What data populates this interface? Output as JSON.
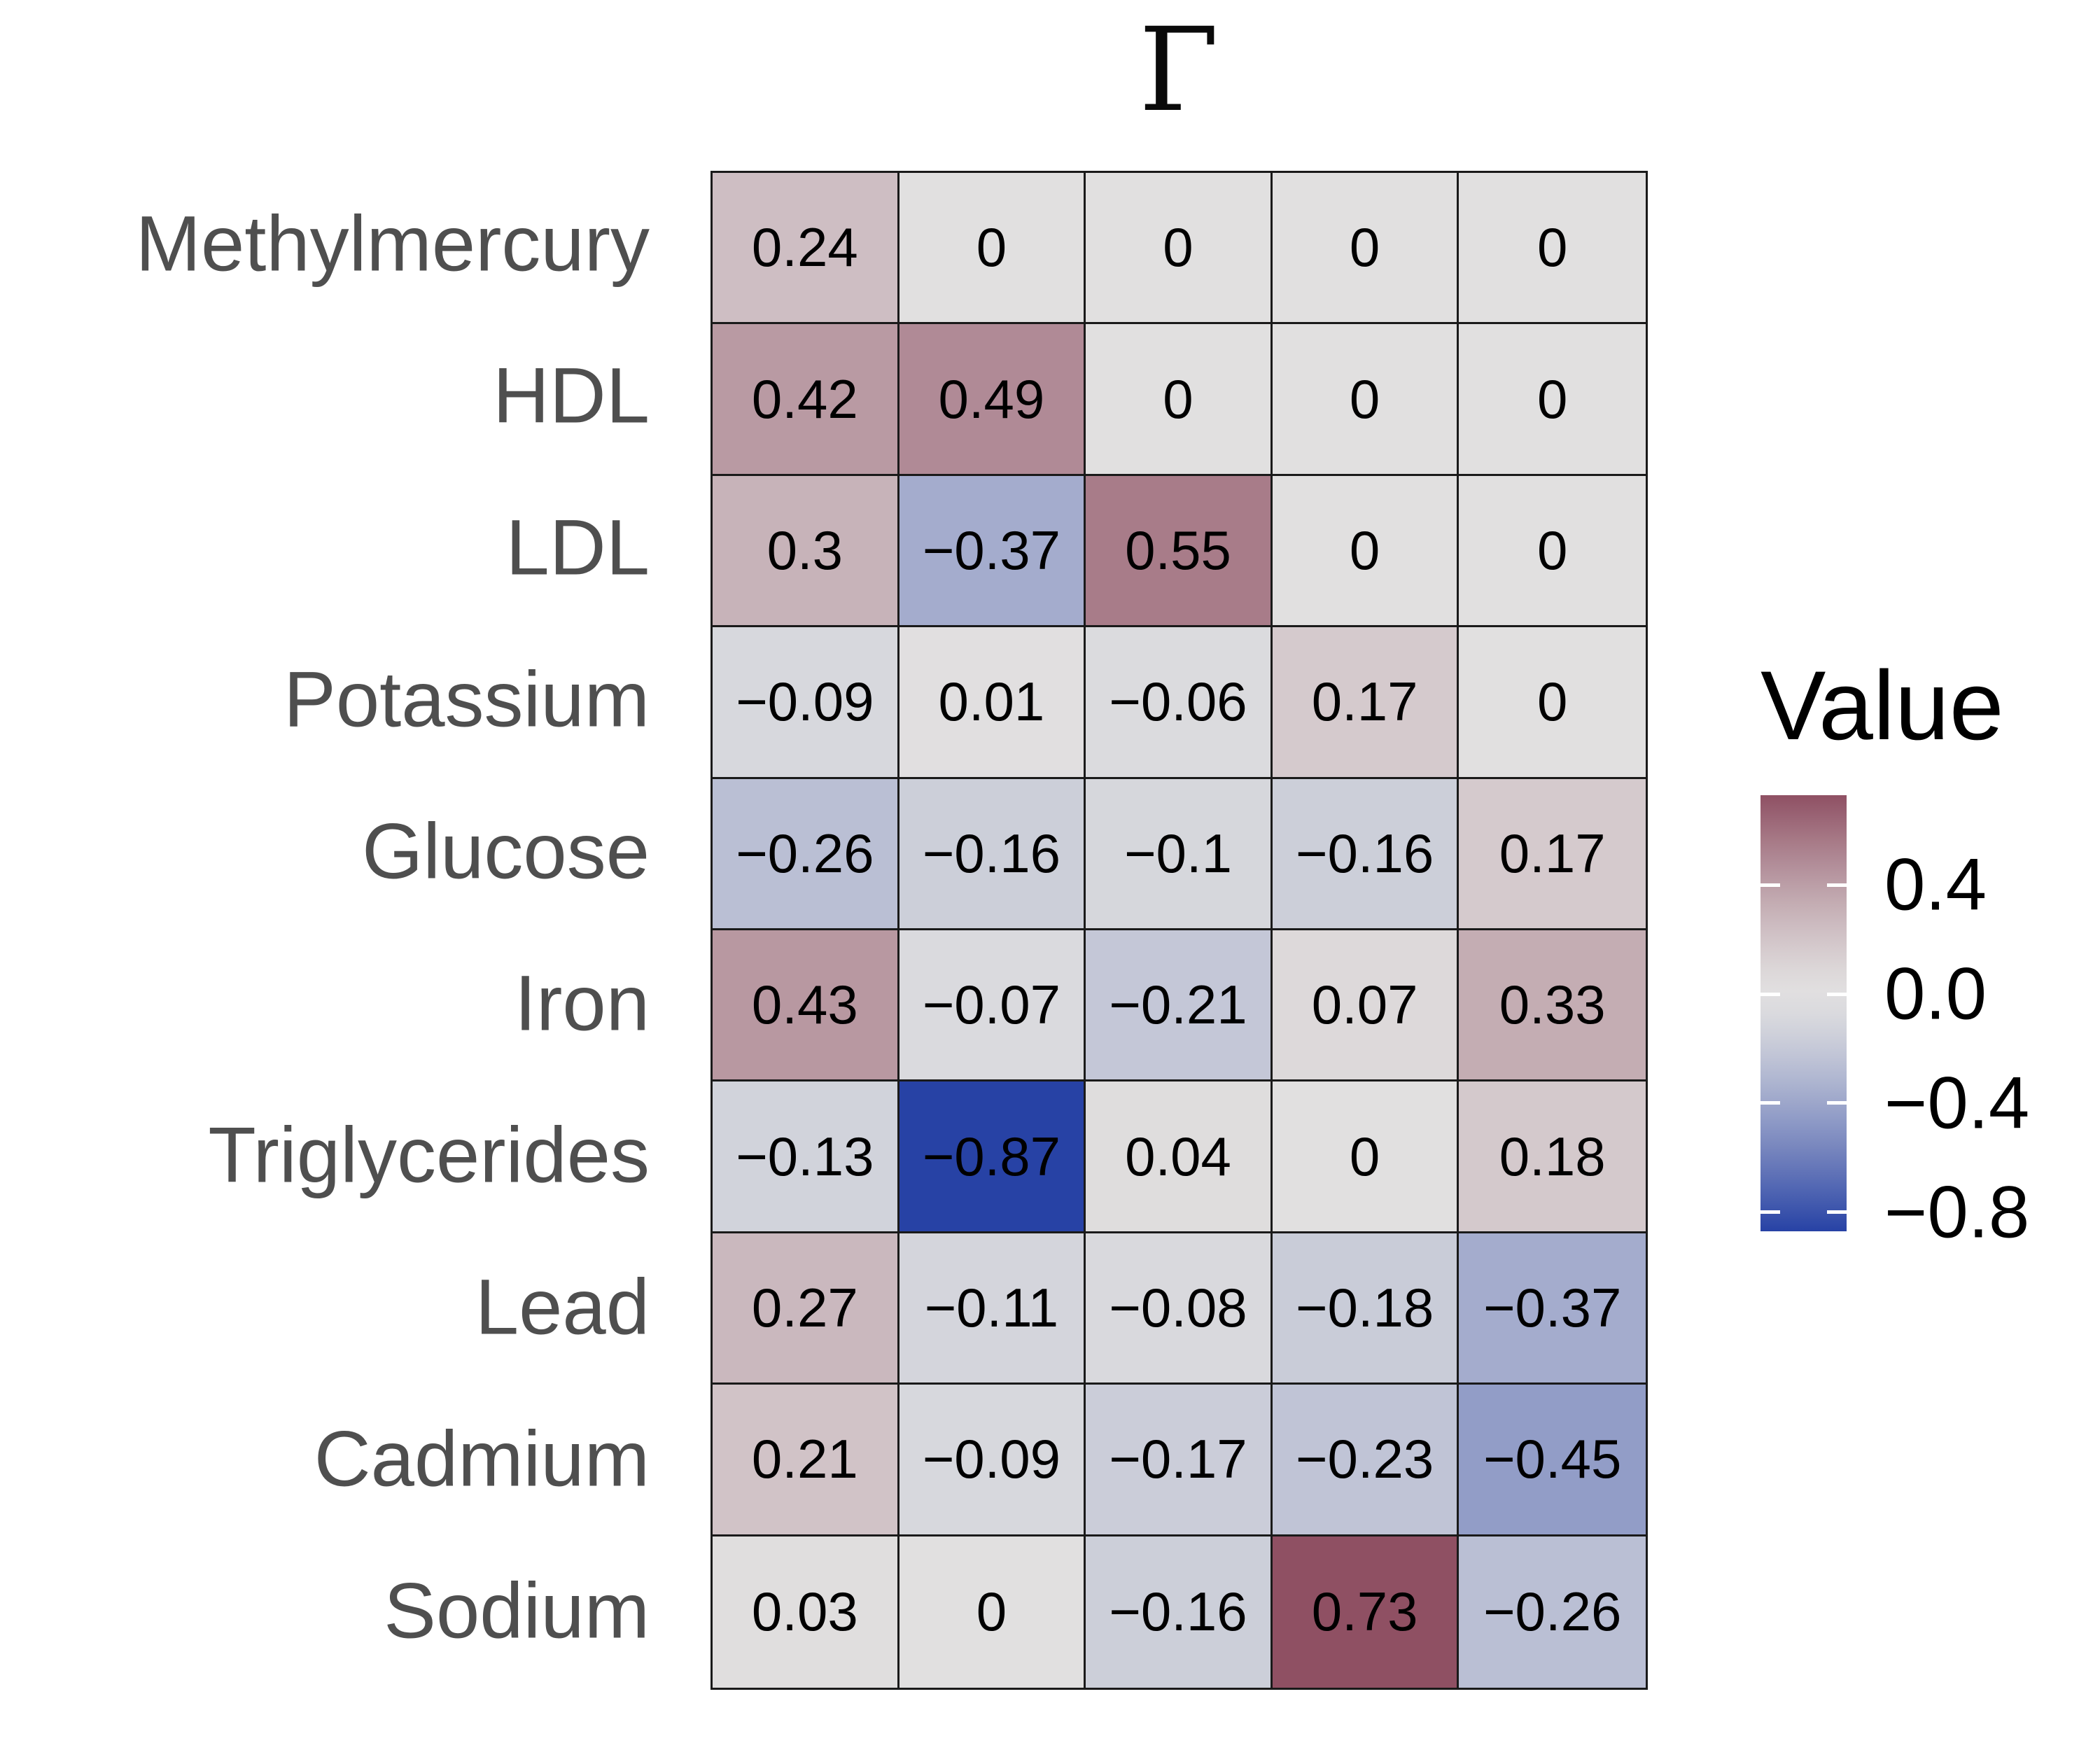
{
  "chart_data": {
    "type": "heatmap",
    "title": "Γ",
    "rows": [
      "Methylmercury",
      "HDL",
      "LDL",
      "Potassium",
      "Glucose",
      "Iron",
      "Triglycerides",
      "Lead",
      "Cadmium",
      "Sodium"
    ],
    "num_columns": 5,
    "values": [
      [
        0.24,
        0,
        0,
        0,
        0
      ],
      [
        0.42,
        0.49,
        0,
        0,
        0
      ],
      [
        0.3,
        -0.37,
        0.55,
        0,
        0
      ],
      [
        -0.09,
        0.01,
        -0.06,
        0.17,
        0
      ],
      [
        -0.26,
        -0.16,
        -0.1,
        -0.16,
        0.17
      ],
      [
        0.43,
        -0.07,
        -0.21,
        0.07,
        0.33
      ],
      [
        -0.13,
        -0.87,
        0.04,
        0,
        0.18
      ],
      [
        0.27,
        -0.11,
        -0.08,
        -0.18,
        -0.37
      ],
      [
        0.21,
        -0.09,
        -0.17,
        -0.23,
        -0.45
      ],
      [
        0.03,
        0,
        -0.16,
        0.73,
        -0.26
      ]
    ],
    "cell_labels": [
      [
        "0.24",
        "0",
        "0",
        "0",
        "0"
      ],
      [
        "0.42",
        "0.49",
        "0",
        "0",
        "0"
      ],
      [
        "0.3",
        "−0.37",
        "0.55",
        "0",
        "0"
      ],
      [
        "−0.09",
        "0.01",
        "−0.06",
        "0.17",
        "0"
      ],
      [
        "−0.26",
        "−0.16",
        "−0.1",
        "−0.16",
        "0.17"
      ],
      [
        "0.43",
        "−0.07",
        "−0.21",
        "0.07",
        "0.33"
      ],
      [
        "−0.13",
        "−0.87",
        "0.04",
        "0",
        "0.18"
      ],
      [
        "0.27",
        "−0.11",
        "−0.08",
        "−0.18",
        "−0.37"
      ],
      [
        "0.21",
        "−0.09",
        "−0.17",
        "−0.23",
        "−0.45"
      ],
      [
        "0.03",
        "0",
        "−0.16",
        "0.73",
        "−0.26"
      ]
    ],
    "legend": {
      "title": "Value",
      "tick_labels": [
        "0.4",
        "0.0",
        "−0.4",
        "−0.8"
      ],
      "tick_values": [
        0.4,
        0.0,
        -0.4,
        -0.8
      ],
      "domain_min": -0.87,
      "domain_max": 0.73
    },
    "color_scale": {
      "low": "#2742A5",
      "mid": "#E1E0E0",
      "high": "#8F5063"
    },
    "grid_line_color": "#1a1a1a",
    "row_label_color": "#4f4f4f"
  }
}
